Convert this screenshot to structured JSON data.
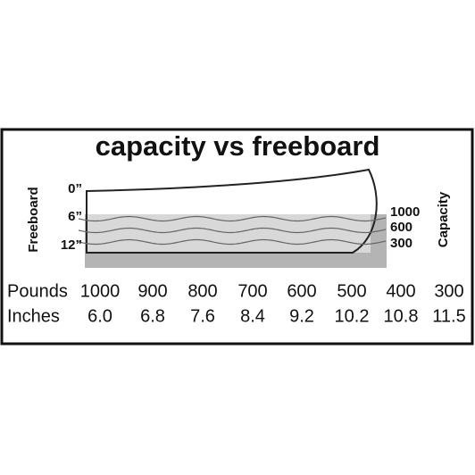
{
  "title": "capacity vs freeboard",
  "freeboard_axis": {
    "label": "Freeboard",
    "ticks": [
      "0”",
      "6”",
      "12”"
    ]
  },
  "capacity_axis": {
    "label": "Capacity",
    "ticks": [
      "1000",
      "600",
      "300"
    ]
  },
  "table": {
    "rows": [
      [
        "Pounds",
        "1000",
        "900",
        "800",
        "700",
        "600",
        "500",
        "400",
        "300"
      ],
      [
        "Inches",
        "6.0",
        "6.8",
        "7.6",
        "8.4",
        "9.2",
        "10.2",
        "10.8",
        "11.5"
      ]
    ]
  }
}
